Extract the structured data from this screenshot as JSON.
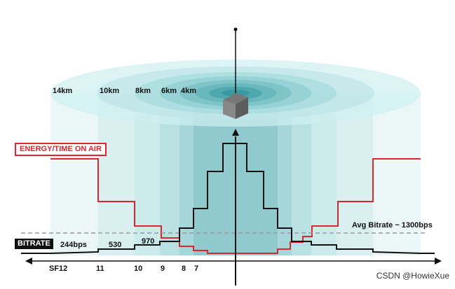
{
  "distances": [
    "14km",
    "10km",
    "8km",
    "6km",
    "4km"
  ],
  "spreading_factors": [
    "SF12",
    "11",
    "10",
    "9",
    "8",
    "7"
  ],
  "bitrates": [
    "244bps",
    "530",
    "970"
  ],
  "energy_label": "ENERGY/TIME ON AIR",
  "bitrate_label": "BITRATE",
  "avg_bitrate": "Avg Bitrate ~ 1300bps",
  "watermark": "CSDN @HowieXue",
  "colors": {
    "energy_line": "#d9272e",
    "bitrate_line": "#111111",
    "zone_fill": "#8fd0d3",
    "avg_line": "#999999"
  }
}
